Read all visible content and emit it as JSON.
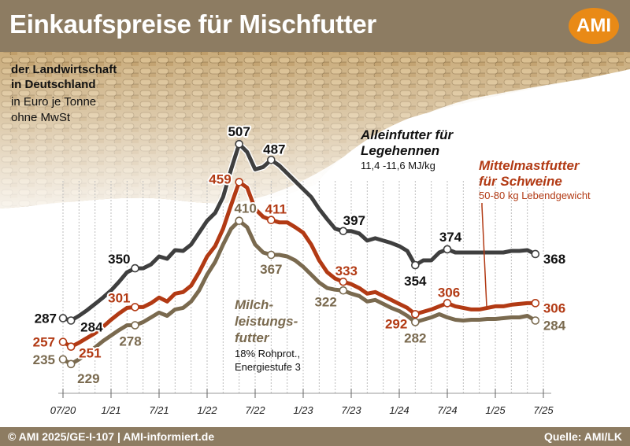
{
  "header": {
    "title": "Einkaufspreise für Mischfutter",
    "logo": "AMI"
  },
  "subtitle": {
    "line1": "der Landwirtschaft",
    "line2": "in Deutschland",
    "line3": "in Euro je Tonne",
    "line4": "ohne MwSt"
  },
  "footer": {
    "left": "© AMI 2025/GE-I-107 | AMI-informiert.de",
    "right": "Quelle: AMI/LK"
  },
  "colors": {
    "legehennen": "#3f3f3f",
    "schweine": "#b23a14",
    "milch": "#7a6a4f",
    "background": "#ffffff",
    "frame": "#8d7c62",
    "accent": "#e98a16"
  },
  "chart_data": {
    "type": "line",
    "ylim": [
      200,
      530
    ],
    "x_ticks": [
      "07/20",
      "1/21",
      "7/21",
      "1/22",
      "7/22",
      "1/23",
      "7/23",
      "1/24",
      "7/24",
      "1/25",
      "7/25"
    ],
    "x_range": [
      0,
      60
    ],
    "series": [
      {
        "name": "Alleinfutter für Legehennen",
        "note": "11,4 -11,6 MJ/kg",
        "key": "legehennen",
        "x": [
          0,
          1,
          2,
          3,
          4,
          5,
          6,
          7,
          8,
          9,
          10,
          11,
          12,
          13,
          14,
          15,
          16,
          17,
          18,
          19,
          20,
          21,
          22,
          23,
          24,
          25,
          26,
          27,
          28,
          29,
          30,
          31,
          32,
          33,
          34,
          35,
          36,
          37,
          38,
          39,
          40,
          41,
          42,
          43,
          44,
          45,
          46,
          47,
          48,
          49,
          50,
          51,
          52,
          53,
          54,
          55,
          56,
          57,
          58,
          59
        ],
        "values": [
          287,
          284,
          290,
          297,
          305,
          313,
          322,
          333,
          345,
          350,
          350,
          355,
          365,
          362,
          373,
          372,
          380,
          395,
          410,
          420,
          440,
          475,
          507,
          497,
          475,
          478,
          487,
          480,
          470,
          460,
          450,
          440,
          425,
          412,
          400,
          397,
          397,
          394,
          385,
          388,
          385,
          382,
          378,
          372,
          354,
          360,
          360,
          370,
          374,
          370,
          370,
          370,
          370,
          370,
          370,
          370,
          372,
          372,
          373,
          368
        ],
        "labels": [
          {
            "x": 0,
            "text": "287"
          },
          {
            "x": 1,
            "text": "284"
          },
          {
            "x": 9,
            "text": "350"
          },
          {
            "x": 22,
            "text": "507"
          },
          {
            "x": 26,
            "text": "487"
          },
          {
            "x": 35,
            "text": "397"
          },
          {
            "x": 44,
            "text": "354"
          },
          {
            "x": 48,
            "text": "374"
          },
          {
            "x": 59,
            "text": "368"
          }
        ]
      },
      {
        "name": "Mittelmastfutter für Schweine",
        "note": "50-80 kg Lebendgewicht",
        "key": "schweine",
        "x": [
          0,
          1,
          2,
          3,
          4,
          5,
          6,
          7,
          8,
          9,
          10,
          11,
          12,
          13,
          14,
          15,
          16,
          17,
          18,
          19,
          20,
          21,
          22,
          23,
          24,
          25,
          26,
          27,
          28,
          29,
          30,
          31,
          32,
          33,
          34,
          35,
          36,
          37,
          38,
          39,
          40,
          41,
          42,
          43,
          44,
          45,
          46,
          47,
          48,
          49,
          50,
          51,
          52,
          53,
          54,
          55,
          56,
          57,
          58,
          59
        ],
        "values": [
          257,
          251,
          256,
          262,
          268,
          276,
          285,
          293,
          300,
          301,
          301,
          306,
          313,
          308,
          318,
          320,
          328,
          345,
          365,
          378,
          400,
          430,
          459,
          452,
          425,
          415,
          411,
          408,
          408,
          402,
          395,
          380,
          360,
          345,
          337,
          333,
          330,
          325,
          318,
          320,
          315,
          310,
          305,
          300,
          292,
          295,
          298,
          302,
          306,
          302,
          300,
          298,
          298,
          300,
          302,
          302,
          304,
          305,
          306,
          306
        ],
        "labels": [
          {
            "x": 0,
            "text": "257"
          },
          {
            "x": 1,
            "text": "251"
          },
          {
            "x": 9,
            "text": "301"
          },
          {
            "x": 22,
            "text": "459"
          },
          {
            "x": 26,
            "text": "411"
          },
          {
            "x": 35,
            "text": "333"
          },
          {
            "x": 44,
            "text": "292"
          },
          {
            "x": 48,
            "text": "306"
          },
          {
            "x": 59,
            "text": "306"
          }
        ]
      },
      {
        "name": "Milchleistungsfutter",
        "note1": "18% Rohprot.,",
        "note2": "Energiestufe 3",
        "key": "milch",
        "x": [
          0,
          1,
          2,
          3,
          4,
          5,
          6,
          7,
          8,
          9,
          10,
          11,
          12,
          13,
          14,
          15,
          16,
          17,
          18,
          19,
          20,
          21,
          22,
          23,
          24,
          25,
          26,
          27,
          28,
          29,
          30,
          31,
          32,
          33,
          34,
          35,
          36,
          37,
          38,
          39,
          40,
          41,
          42,
          43,
          44,
          45,
          46,
          47,
          48,
          49,
          50,
          51,
          52,
          53,
          54,
          55,
          56,
          57,
          58,
          59
        ],
        "values": [
          235,
          229,
          235,
          242,
          250,
          258,
          265,
          272,
          278,
          278,
          282,
          288,
          294,
          290,
          298,
          300,
          308,
          322,
          342,
          358,
          380,
          400,
          410,
          402,
          380,
          370,
          367,
          367,
          365,
          360,
          352,
          342,
          332,
          325,
          323,
          322,
          318,
          315,
          308,
          310,
          305,
          300,
          296,
          290,
          282,
          285,
          288,
          292,
          288,
          285,
          284,
          285,
          285,
          286,
          286,
          287,
          288,
          288,
          290,
          284
        ],
        "labels": [
          {
            "x": 0,
            "text": "235"
          },
          {
            "x": 1,
            "text": "229"
          },
          {
            "x": 9,
            "text": "278"
          },
          {
            "x": 22,
            "text": "410"
          },
          {
            "x": 26,
            "text": "367"
          },
          {
            "x": 35,
            "text": "322"
          },
          {
            "x": 44,
            "text": "282"
          },
          {
            "x": 59,
            "text": "284"
          }
        ]
      }
    ],
    "legend": {
      "legehennen_line1": "Alleinfutter für",
      "legehennen_line2": "Legehennen",
      "schweine_line1": "Mittelmastfutter",
      "schweine_line2": "für Schweine",
      "milch_line1": "Milch-",
      "milch_line2": "leistungs-",
      "milch_line3": "futter"
    }
  }
}
